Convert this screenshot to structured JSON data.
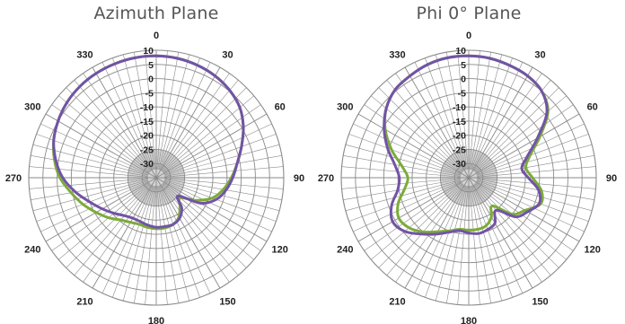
{
  "colors": {
    "series_a": "#7cab3a",
    "series_b": "#7253a6",
    "grid": "#8a8a8a",
    "inner_fill": "#d2d2d2"
  },
  "chart_data": [
    {
      "type": "polar-line",
      "title": "Azimuth Plane",
      "angle_labels": [
        "0",
        "30",
        "60",
        "90",
        "120",
        "150",
        "180",
        "210",
        "240",
        "270",
        "300",
        "330"
      ],
      "radial_labels": [
        "10",
        "5",
        "0",
        "-5",
        "-10",
        "-15",
        "-20",
        "-25",
        "-30"
      ],
      "rlim": [
        -35,
        10
      ],
      "grid": true,
      "legend": "none",
      "angles": [
        0,
        10,
        20,
        30,
        40,
        50,
        60,
        70,
        80,
        90,
        100,
        110,
        120,
        130,
        140,
        150,
        160,
        170,
        180,
        190,
        200,
        210,
        220,
        230,
        240,
        250,
        260,
        270,
        280,
        290,
        300,
        310,
        320,
        330,
        340,
        350
      ],
      "series": [
        {
          "color": "#7cab3a",
          "values": [
            8,
            7.8,
            7.3,
            6.5,
            5.3,
            3.5,
            0.5,
            -3,
            -6,
            -8.5,
            -11,
            -14,
            -19,
            -24,
            -22,
            -19,
            -17.5,
            -17,
            -17,
            -17.2,
            -17.5,
            -16.8,
            -15.5,
            -13,
            -10.5,
            -7.5,
            -4.5,
            -1,
            1.5,
            3.5,
            5,
            6.2,
            7,
            7.5,
            7.8,
            8
          ]
        },
        {
          "color": "#7253a6",
          "values": [
            8,
            7.8,
            7.3,
            6.5,
            5.3,
            3.5,
            0.5,
            -3,
            -6,
            -8,
            -10,
            -12.5,
            -17,
            -25,
            -21,
            -18.5,
            -17.5,
            -17.5,
            -17.5,
            -18,
            -18.5,
            -18.5,
            -17.5,
            -15.5,
            -13,
            -10,
            -6,
            -2,
            1,
            3.5,
            5,
            6.2,
            7,
            7.5,
            7.8,
            8
          ]
        }
      ]
    },
    {
      "type": "polar-line",
      "title": "Phi 0° Plane",
      "angle_labels": [
        "0",
        "30",
        "60",
        "90",
        "120",
        "150",
        "180",
        "210",
        "240",
        "270",
        "300",
        "330"
      ],
      "radial_labels": [
        "10",
        "5",
        "0",
        "-5",
        "-10",
        "-15",
        "-20",
        "-25",
        "-30"
      ],
      "rlim": [
        -35,
        10
      ],
      "grid": true,
      "legend": "none",
      "angles": [
        0,
        10,
        20,
        30,
        40,
        50,
        60,
        70,
        80,
        90,
        100,
        110,
        120,
        130,
        140,
        150,
        160,
        170,
        180,
        190,
        200,
        210,
        220,
        230,
        240,
        250,
        260,
        270,
        280,
        290,
        300,
        310,
        320,
        330,
        340,
        350
      ],
      "series": [
        {
          "color": "#7cab3a",
          "values": [
            8,
            7.8,
            7.2,
            6.5,
            5,
            1.5,
            -6,
            -12,
            -14.5,
            -12.5,
            -9,
            -8,
            -12,
            -15,
            -22,
            -19,
            -17,
            -16.5,
            -16.5,
            -16.5,
            -15,
            -13,
            -10,
            -7.5,
            -6.5,
            -8.5,
            -12,
            -13.5,
            -11,
            -6,
            -1,
            3,
            5.5,
            6.5,
            7.5,
            8
          ]
        },
        {
          "color": "#7253a6",
          "values": [
            8,
            7.8,
            7.2,
            6.5,
            5,
            1,
            -7,
            -13,
            -16,
            -14,
            -10,
            -8.5,
            -11,
            -13.5,
            -20,
            -16.5,
            -15.5,
            -15,
            -15.5,
            -16,
            -14.5,
            -12,
            -9,
            -5.5,
            -4,
            -6,
            -9.5,
            -10.5,
            -8.5,
            -4.5,
            -0.5,
            3,
            5.5,
            6.5,
            7.5,
            8
          ]
        }
      ]
    }
  ]
}
